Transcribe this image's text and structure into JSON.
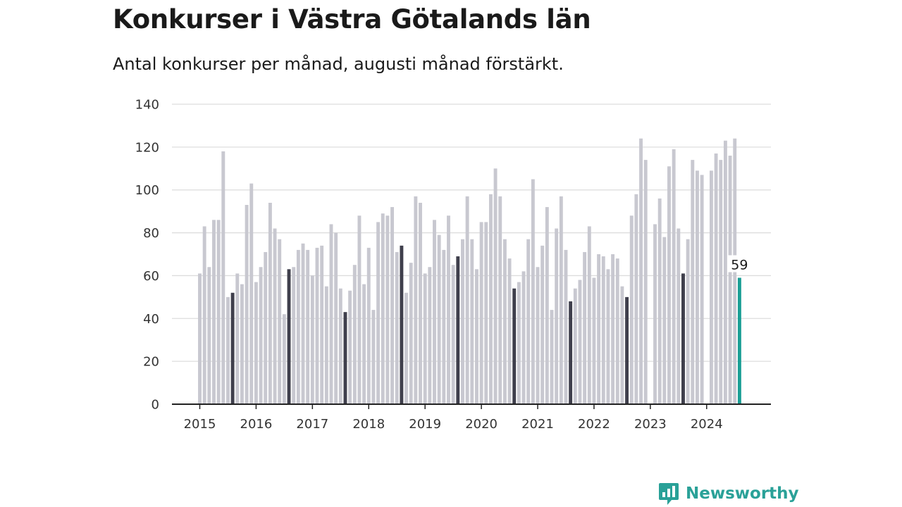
{
  "header": {
    "title": "Konkurser i Västra Götalands län",
    "subtitle": "Antal konkurser per månad, augusti månad förstärkt."
  },
  "brand": {
    "name": "Newsworthy",
    "icon": "newsworthy-logo-icon",
    "color": "#2aa198"
  },
  "colors": {
    "normal": "#c8c8d0",
    "highlight": "#3f3f4c",
    "latest": "#1a9e95",
    "grid": "#dddddd",
    "axis": "#222222"
  },
  "chart_data": {
    "type": "bar",
    "title": "Konkurser i Västra Götalands län",
    "subtitle": "Antal konkurser per månad, augusti månad förstärkt.",
    "xlabel": "",
    "ylabel": "",
    "ylim": [
      0,
      140
    ],
    "yticks": [
      0,
      20,
      40,
      60,
      80,
      100,
      120,
      140
    ],
    "xticks": [
      "2015",
      "2016",
      "2017",
      "2018",
      "2019",
      "2020",
      "2021",
      "2022",
      "2023",
      "2024"
    ],
    "grid": true,
    "start": "2015-01",
    "highlight_month": "augusti",
    "series": [
      {
        "year": "2015",
        "values": [
          61,
          83,
          64,
          86,
          86,
          118,
          50,
          52,
          61,
          56,
          93,
          103
        ]
      },
      {
        "year": "2016",
        "values": [
          57,
          64,
          71,
          94,
          82,
          77,
          42,
          63,
          64,
          72,
          75,
          72
        ]
      },
      {
        "year": "2017",
        "values": [
          60,
          73,
          74,
          55,
          84,
          80,
          54,
          43,
          53,
          65,
          88,
          56
        ]
      },
      {
        "year": "2018",
        "values": [
          73,
          44,
          85,
          89,
          88,
          92,
          71,
          74,
          52,
          66,
          97,
          94
        ]
      },
      {
        "year": "2019",
        "values": [
          61,
          64,
          86,
          79,
          72,
          88,
          65,
          69,
          77,
          97,
          77,
          63
        ]
      },
      {
        "year": "2020",
        "values": [
          85,
          85,
          98,
          110,
          97,
          77,
          68,
          54,
          57,
          62,
          77,
          105
        ]
      },
      {
        "year": "2021",
        "values": [
          64,
          74,
          92,
          44,
          82,
          97,
          72,
          48,
          54,
          58,
          71,
          83
        ]
      },
      {
        "year": "2022",
        "values": [
          59,
          70,
          69,
          63,
          70,
          68,
          55,
          50,
          88,
          98,
          124,
          114
        ]
      },
      {
        "year": "2023",
        "values": [
          null,
          84,
          96,
          78,
          111,
          119,
          82,
          61,
          77,
          114,
          109,
          107
        ]
      },
      {
        "year": "2024",
        "values": [
          null,
          109,
          117,
          114,
          123,
          116,
          124,
          59
        ]
      }
    ],
    "annotations": [
      {
        "label": "59",
        "year": "2024",
        "month": 8,
        "value": 59
      }
    ]
  }
}
